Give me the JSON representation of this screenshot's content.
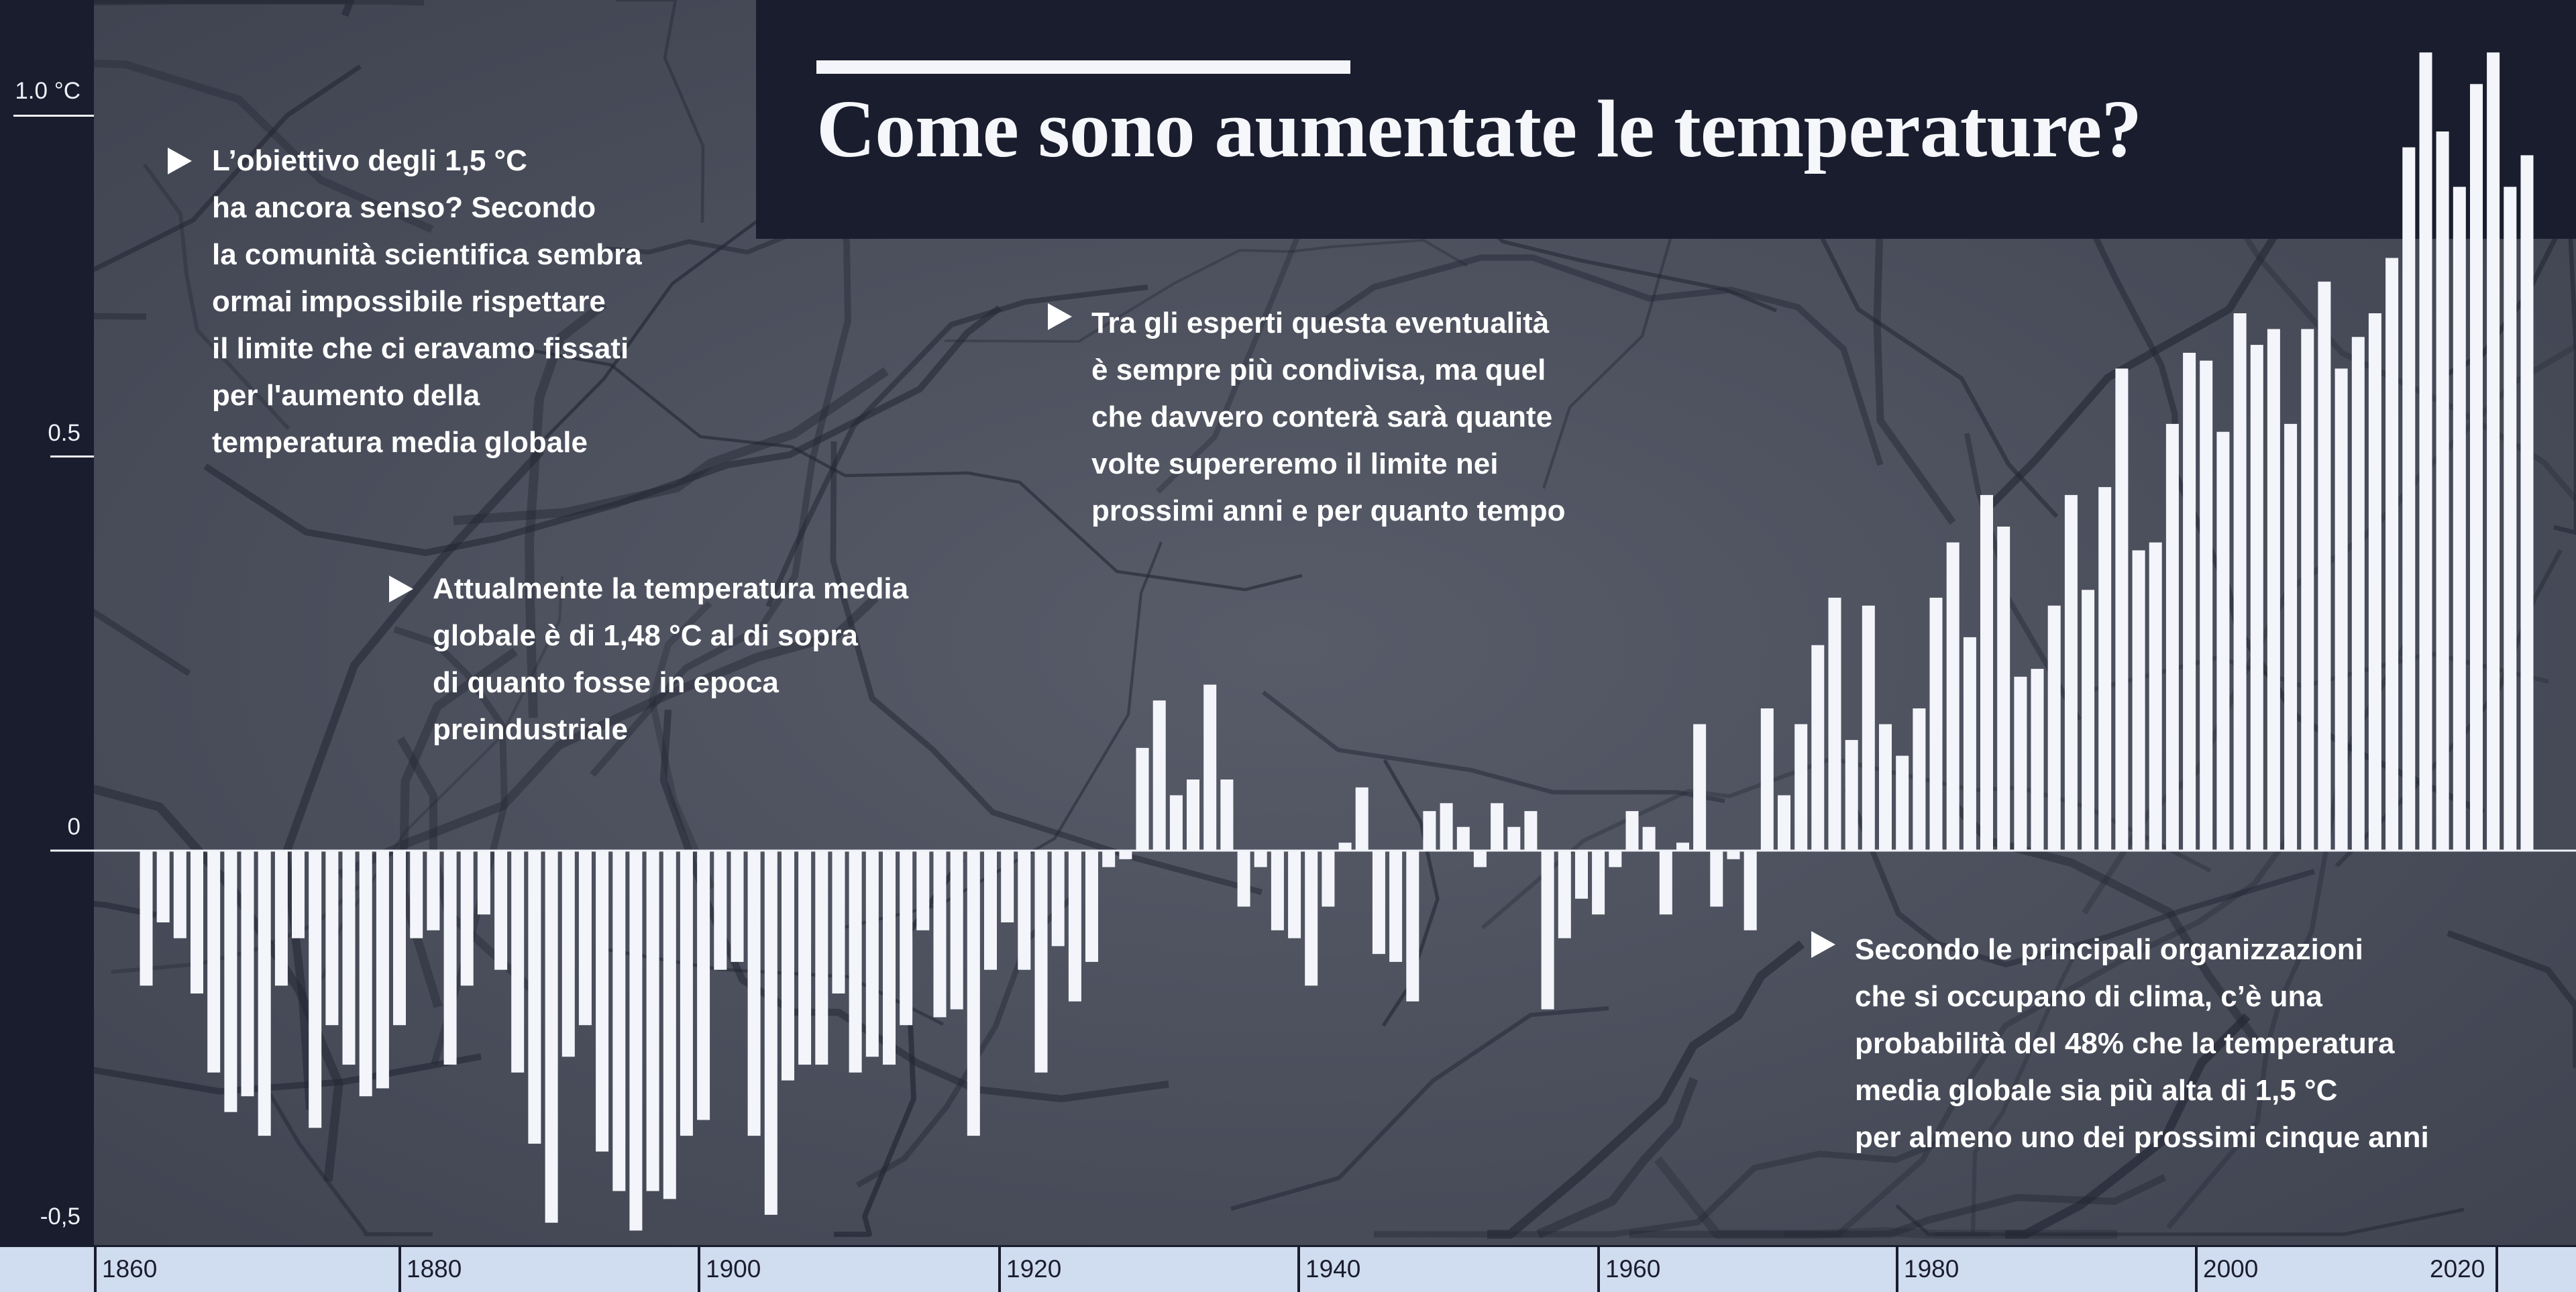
{
  "title": "Come sono aumentate le temperature?",
  "y_axis": {
    "ticks": [
      "1.0 °C",
      "0.5",
      "0",
      "-0,5"
    ]
  },
  "x_axis": {
    "ticks": [
      "1860",
      "1880",
      "1900",
      "1920",
      "1940",
      "1960",
      "1980",
      "2000",
      "2020"
    ]
  },
  "annotations": [
    {
      "lines": [
        "L’obiettivo degli 1,5 °C",
        "ha ancora senso? Secondo",
        "la comunità scientifica sembra",
        "ormai impossibile rispettare",
        "il limite che ci eravamo fissati",
        "per l'aumento della",
        "temperatura media globale"
      ]
    },
    {
      "lines": [
        "Attualmente la temperatura media",
        "globale è di 1,48 °C al di sopra",
        "di quanto fosse in epoca",
        "preindustriale"
      ]
    },
    {
      "lines": [
        "Tra gli esperti questa eventualità",
        "è sempre più condivisa, ma quel",
        "che davvero conterà sarà quante",
        "volte supereremo il limite nei",
        "prossimi anni e per quanto tempo"
      ]
    },
    {
      "lines": [
        "Secondo le principali organizzazioni",
        "che si occupano di clima, c’è una",
        "probabilità del 48% che la temperatura",
        "media globale sia più alta di 1,5 °C",
        "per almeno uno dei prossimi cinque anni"
      ]
    }
  ],
  "colors": {
    "background": "#1a1d2e",
    "bars": "#f3f5fa",
    "axis_band": "#d0dcef",
    "texture": "#4d5160"
  },
  "chart_data": {
    "type": "bar",
    "title": "Come sono aumentate le temperature?",
    "xlabel": "",
    "ylabel": "",
    "unit": "°C",
    "ylim": [
      -0.5,
      1.05
    ],
    "grid": false,
    "categories": [
      1881,
      1882,
      1883,
      1884,
      1885,
      1886,
      1887,
      1888,
      1889,
      1890,
      1891,
      1892,
      1893,
      1894,
      1895,
      1896,
      1897,
      1898,
      1899,
      1900,
      1901,
      1902,
      1903,
      1904,
      1905,
      1906,
      1907,
      1908,
      1909,
      1910,
      1911,
      1912,
      1913,
      1914,
      1915,
      1916,
      1917,
      1918,
      1919,
      1920,
      1921,
      1922,
      1923,
      1924,
      1925,
      1926,
      1927,
      1928,
      1929,
      1930,
      1931,
      1932,
      1933,
      1934,
      1935,
      1936,
      1937,
      1938,
      1939,
      1940,
      1941,
      1942,
      1943,
      1944,
      1945,
      1946,
      1947,
      1948,
      1949,
      1950,
      1951,
      1952,
      1953,
      1954,
      1955,
      1956,
      1957,
      1958,
      1959,
      1960,
      1961,
      1962,
      1963,
      1964,
      1965,
      1966,
      1967,
      1968,
      1969,
      1970,
      1971,
      1972,
      1973,
      1974,
      1975,
      1976,
      1977,
      1978,
      1979,
      1980,
      1981,
      1982,
      1983,
      1984,
      1985,
      1986,
      1987,
      1988,
      1989,
      1990,
      1991,
      1992,
      1993,
      1994,
      1995,
      1996,
      1997,
      1998,
      1999,
      2000,
      2001,
      2002,
      2003,
      2004,
      2005,
      2006,
      2007,
      2008,
      2009,
      2010,
      2011,
      2012,
      2013,
      2014,
      2015,
      2016,
      2017,
      2018,
      2019,
      2020,
      2021,
      2022
    ],
    "values": [
      -0.17,
      -0.09,
      -0.11,
      -0.18,
      -0.28,
      -0.33,
      -0.31,
      -0.36,
      -0.17,
      -0.11,
      -0.35,
      -0.22,
      -0.27,
      -0.31,
      -0.3,
      -0.22,
      -0.11,
      -0.1,
      -0.27,
      -0.17,
      -0.08,
      -0.15,
      -0.28,
      -0.37,
      -0.47,
      -0.26,
      -0.22,
      -0.38,
      -0.43,
      -0.48,
      -0.43,
      -0.44,
      -0.36,
      -0.34,
      -0.15,
      -0.14,
      -0.36,
      -0.46,
      -0.29,
      -0.27,
      -0.27,
      -0.18,
      -0.28,
      -0.26,
      -0.27,
      -0.22,
      -0.1,
      -0.21,
      -0.2,
      -0.36,
      -0.15,
      -0.09,
      -0.15,
      -0.28,
      -0.12,
      -0.19,
      -0.14,
      -0.02,
      -0.01,
      0.13,
      0.19,
      0.07,
      0.09,
      0.21,
      0.09,
      -0.07,
      -0.02,
      -0.1,
      -0.11,
      -0.17,
      -0.07,
      0.01,
      0.08,
      -0.13,
      -0.14,
      -0.19,
      0.05,
      0.06,
      0.03,
      -0.02,
      0.06,
      0.03,
      0.05,
      -0.2,
      -0.11,
      -0.06,
      -0.08,
      -0.02,
      0.05,
      0.03,
      -0.08,
      0.01,
      0.16,
      -0.07,
      -0.01,
      -0.1,
      0.18,
      0.07,
      0.16,
      0.26,
      0.32,
      0.14,
      0.31,
      0.16,
      0.12,
      0.18,
      0.32,
      0.39,
      0.27,
      0.45,
      0.41,
      0.22,
      0.23,
      0.31,
      0.45,
      0.33,
      0.46,
      0.61,
      0.38,
      0.39,
      0.54,
      0.63,
      0.62,
      0.53,
      0.68,
      0.64,
      0.66,
      0.54,
      0.66,
      0.72,
      0.61,
      0.65,
      0.68,
      0.75,
      0.89,
      1.01,
      0.91,
      0.84,
      0.97,
      1.01,
      0.84,
      0.88
    ]
  }
}
